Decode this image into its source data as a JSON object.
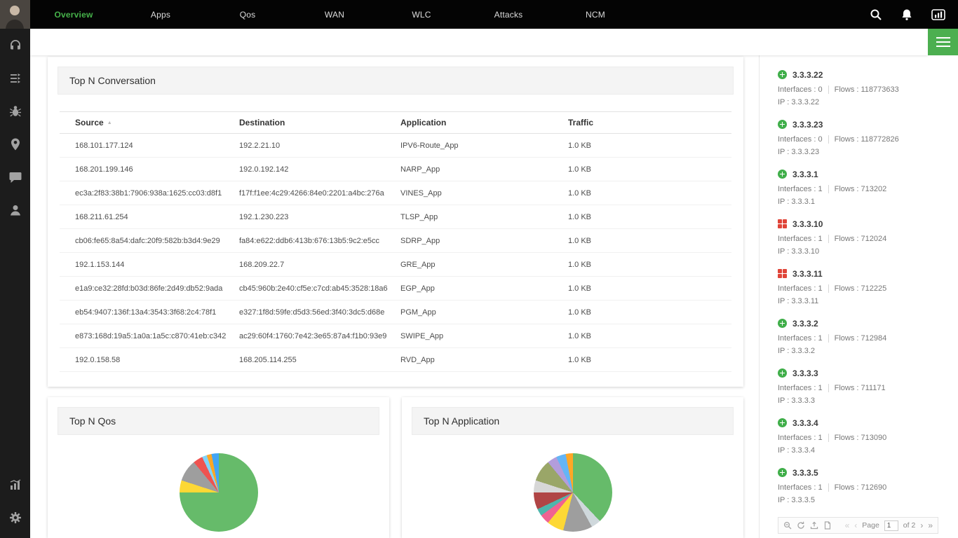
{
  "colors": {
    "accent": "#4caf50",
    "up_status": "#3fae49",
    "critical_status": "#e04438"
  },
  "topbar": {
    "nav": [
      {
        "label": "Overview",
        "active": true
      },
      {
        "label": "Apps",
        "active": false
      },
      {
        "label": "Qos",
        "active": false
      },
      {
        "label": "WAN",
        "active": false
      },
      {
        "label": "WLC",
        "active": false
      },
      {
        "label": "Attacks",
        "active": false
      },
      {
        "label": "NCM",
        "active": false
      }
    ]
  },
  "conversation": {
    "title": "Top N Conversation",
    "columns": [
      "Source",
      "Destination",
      "Application",
      "Traffic"
    ],
    "rows": [
      [
        "168.101.177.124",
        "192.2.21.10",
        "IPV6-Route_App",
        "1.0 KB"
      ],
      [
        "168.201.199.146",
        "192.0.192.142",
        "NARP_App",
        "1.0 KB"
      ],
      [
        "ec3a:2f83:38b1:7906:938a:1625:cc03:d8f1",
        "f17f:f1ee:4c29:4266:84e0:2201:a4bc:276a",
        "VINES_App",
        "1.0 KB"
      ],
      [
        "168.211.61.254",
        "192.1.230.223",
        "TLSP_App",
        "1.0 KB"
      ],
      [
        "cb06:fe65:8a54:dafc:20f9:582b:b3d4:9e29",
        "fa84:e622:ddb6:413b:676:13b5:9c2:e5cc",
        "SDRP_App",
        "1.0 KB"
      ],
      [
        "192.1.153.144",
        "168.209.22.7",
        "GRE_App",
        "1.0 KB"
      ],
      [
        "e1a9:ce32:28fd:b03d:86fe:2d49:db52:9ada",
        "cb45:960b:2e40:cf5e:c7cd:ab45:3528:18a6",
        "EGP_App",
        "1.0 KB"
      ],
      [
        "eb54:9407:136f:13a4:3543:3f68:2c4:78f1",
        "e327:1f8d:59fe:d5d3:56ed:3f40:3dc5:d68e",
        "PGM_App",
        "1.0 KB"
      ],
      [
        "e873:168d:19a5:1a0a:1a5c:c870:41eb:c342",
        "ac29:60f4:1760:7e42:3e65:87a4:f1b0:93e9",
        "SWIPE_App",
        "1.0 KB"
      ],
      [
        "192.0.158.58",
        "168.205.114.255",
        "RVD_App",
        "1.0 KB"
      ]
    ]
  },
  "qos_panel": {
    "title": "Top N Qos"
  },
  "application_panel": {
    "title": "Top N Application"
  },
  "devices": {
    "items": [
      {
        "name": "3.3.3.22",
        "status": "up",
        "interfaces": "Interfaces : 0",
        "flows": "Flows : 118773633",
        "ip": "IP : 3.3.3.22"
      },
      {
        "name": "3.3.3.23",
        "status": "up",
        "interfaces": "Interfaces : 0",
        "flows": "Flows : 118772826",
        "ip": "IP : 3.3.3.23"
      },
      {
        "name": "3.3.3.1",
        "status": "up",
        "interfaces": "Interfaces : 1",
        "flows": "Flows : 713202",
        "ip": "IP : 3.3.3.1"
      },
      {
        "name": "3.3.3.10",
        "status": "critical",
        "interfaces": "Interfaces : 1",
        "flows": "Flows : 712024",
        "ip": "IP : 3.3.3.10"
      },
      {
        "name": "3.3.3.11",
        "status": "critical",
        "interfaces": "Interfaces : 1",
        "flows": "Flows : 712225",
        "ip": "IP : 3.3.3.11"
      },
      {
        "name": "3.3.3.2",
        "status": "up",
        "interfaces": "Interfaces : 1",
        "flows": "Flows : 712984",
        "ip": "IP : 3.3.3.2"
      },
      {
        "name": "3.3.3.3",
        "status": "up",
        "interfaces": "Interfaces : 1",
        "flows": "Flows : 711171",
        "ip": "IP : 3.3.3.3"
      },
      {
        "name": "3.3.3.4",
        "status": "up",
        "interfaces": "Interfaces : 1",
        "flows": "Flows : 713090",
        "ip": "IP : 3.3.3.4"
      },
      {
        "name": "3.3.3.5",
        "status": "up",
        "interfaces": "Interfaces : 1",
        "flows": "Flows : 712690",
        "ip": "IP : 3.3.3.5"
      }
    ],
    "pager": {
      "page_label": "Page",
      "page_value": "1",
      "of_label": "of 2"
    }
  },
  "chart_data": [
    {
      "type": "pie",
      "title": "Top N Qos",
      "legend": "none",
      "note": "slice values estimated from pixels; slice labels not visible in screenshot",
      "slices": [
        {
          "color": "#66bb6a",
          "value": 75
        },
        {
          "color": "#fdd835",
          "value": 5
        },
        {
          "color": "#9e9e9e",
          "value": 9
        },
        {
          "color": "#ef5350",
          "value": 4
        },
        {
          "color": "#81d4fa",
          "value": 2
        },
        {
          "color": "#ffa726",
          "value": 2
        },
        {
          "color": "#42a5f5",
          "value": 3
        }
      ]
    },
    {
      "type": "pie",
      "title": "Top N Application",
      "legend": "none",
      "note": "slice values estimated from pixels; slice labels not visible in screenshot",
      "slices": [
        {
          "color": "#66bb6a",
          "value": 38
        },
        {
          "color": "#cfd8dc",
          "value": 4
        },
        {
          "color": "#9e9e9e",
          "value": 12
        },
        {
          "color": "#fdd835",
          "value": 7
        },
        {
          "color": "#f06292",
          "value": 4
        },
        {
          "color": "#4db6ac",
          "value": 3
        },
        {
          "color": "#b04545",
          "value": 7
        },
        {
          "color": "#d7d7d7",
          "value": 5
        },
        {
          "color": "#9aa668",
          "value": 9
        },
        {
          "color": "#b39ddb",
          "value": 4
        },
        {
          "color": "#64b5f6",
          "value": 4
        },
        {
          "color": "#ffa726",
          "value": 3
        }
      ]
    }
  ]
}
